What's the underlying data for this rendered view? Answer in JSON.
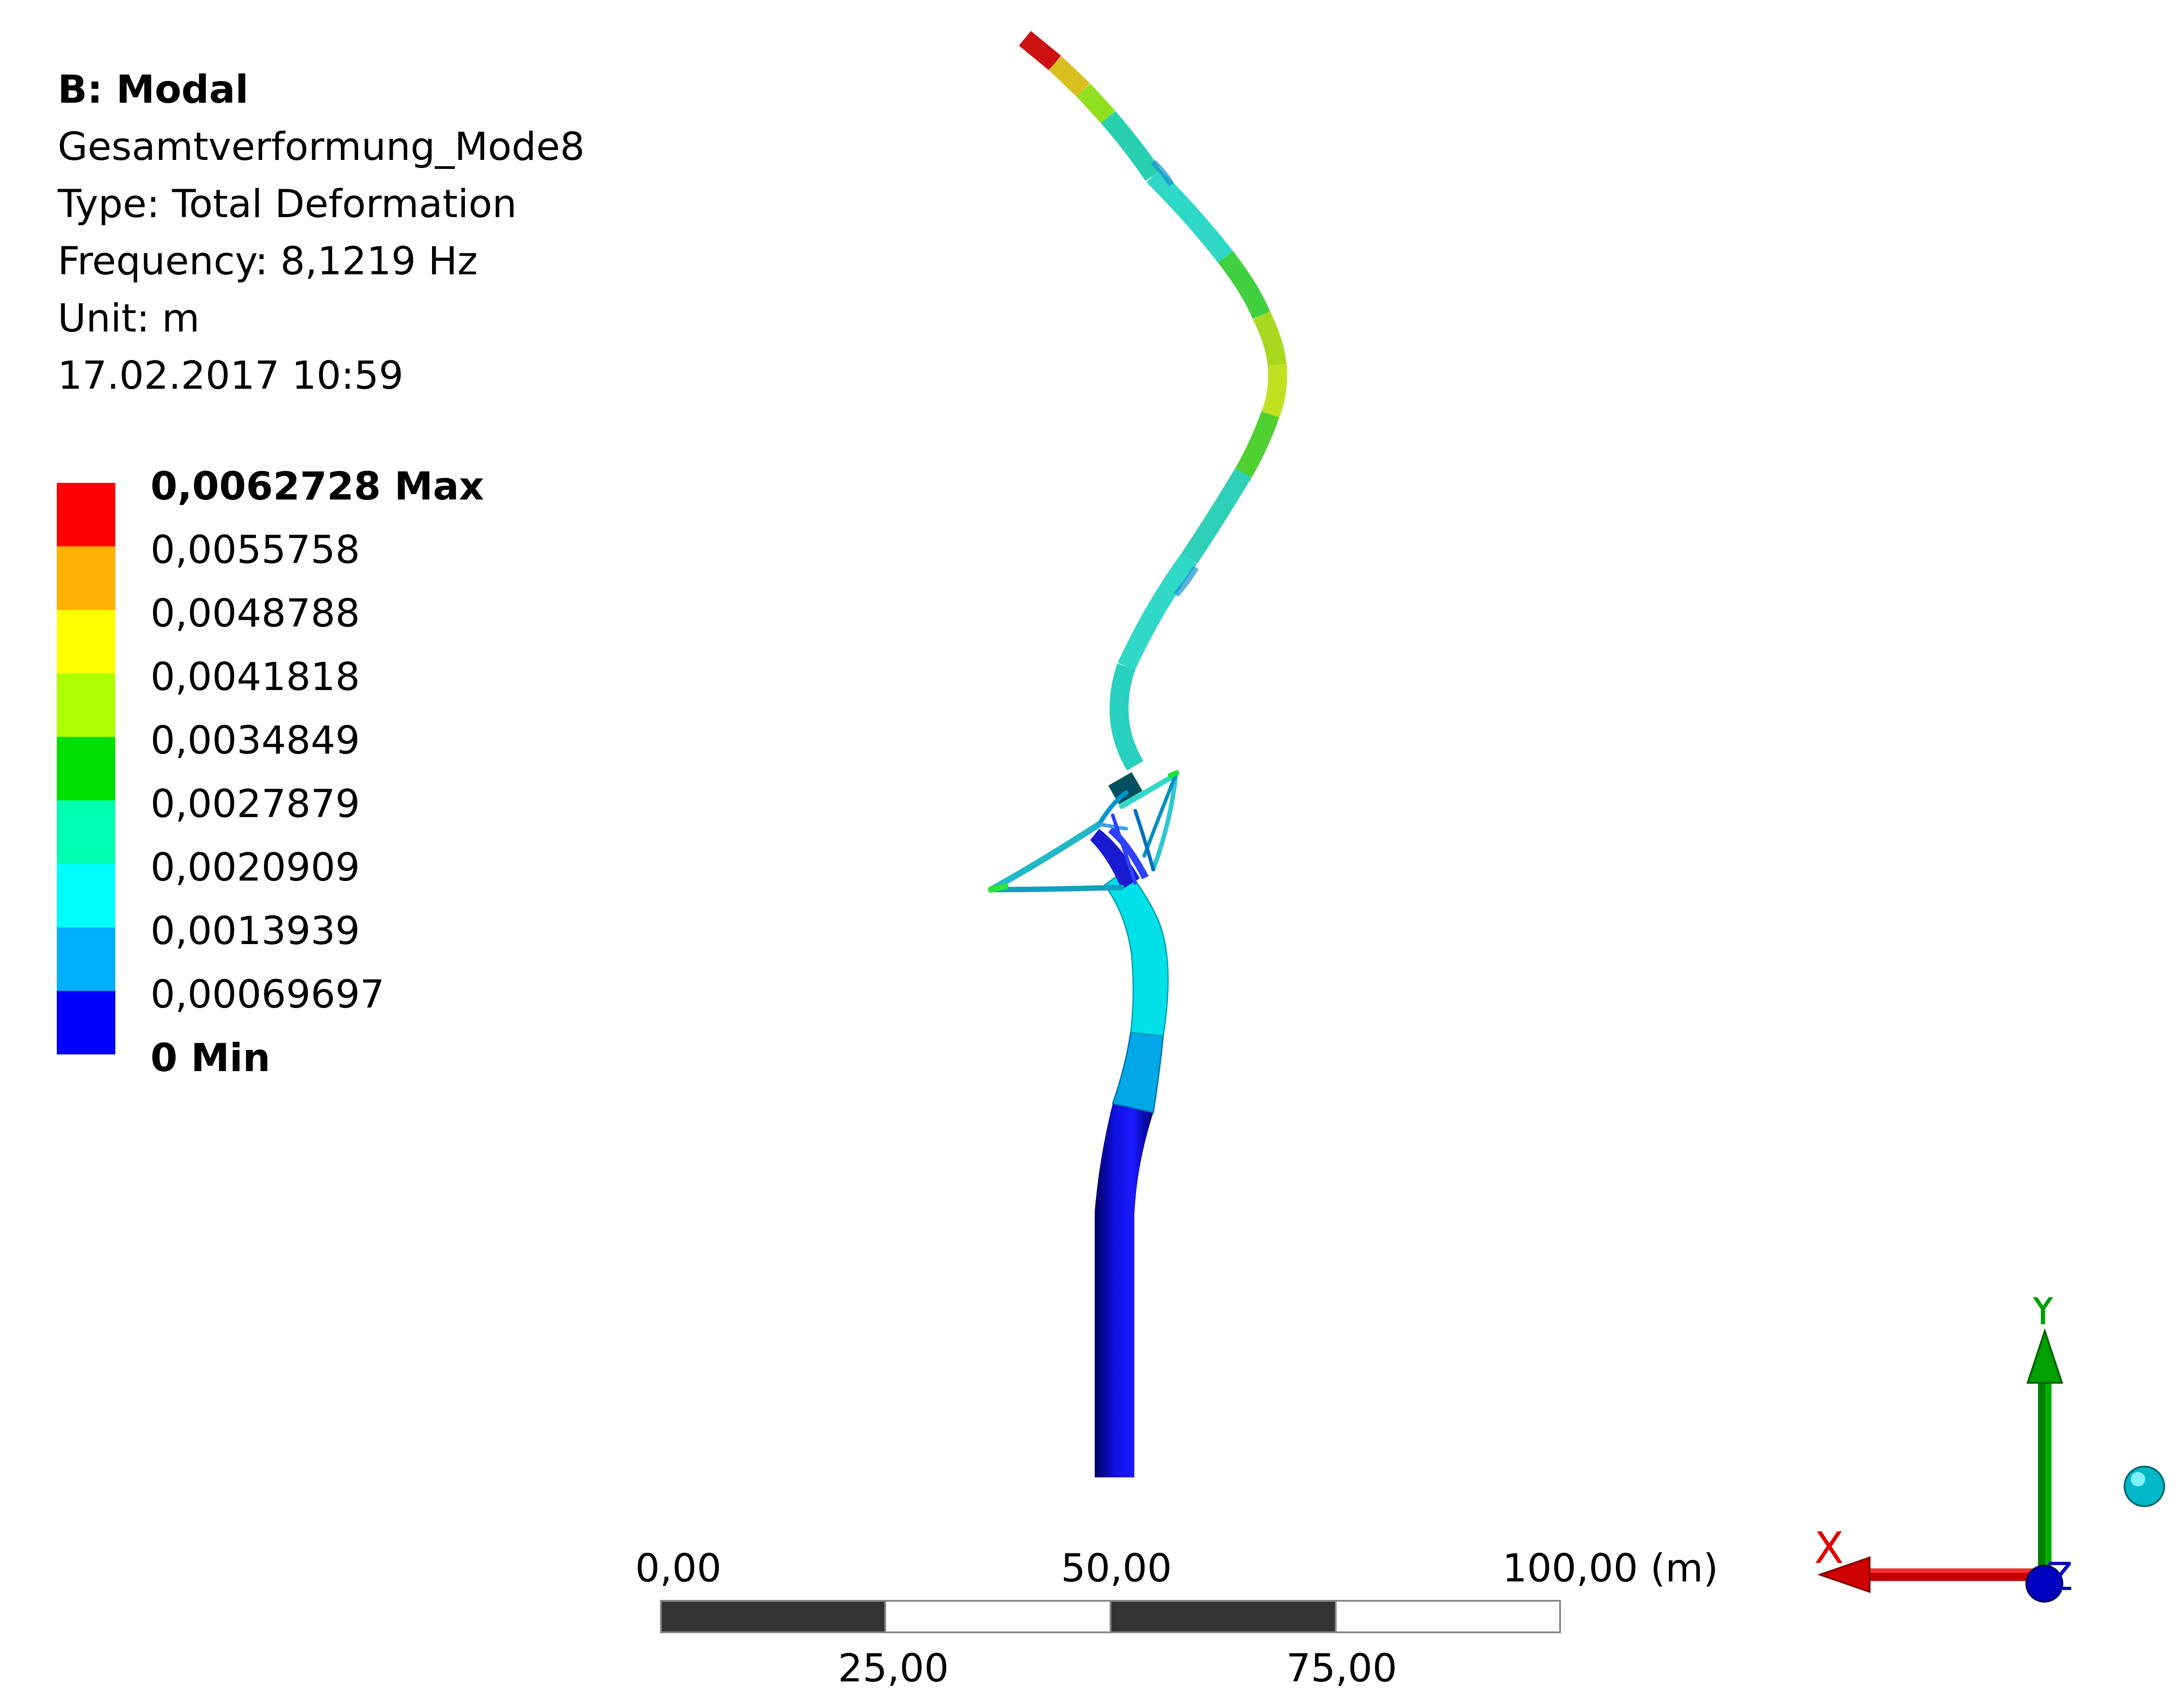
{
  "info": {
    "title": "B: Modal",
    "result_name": "Gesamtverformung_Mode8",
    "type_line": "Type: Total Deformation",
    "frequency_line": "Frequency: 8,1219 Hz",
    "unit_line": "Unit: m",
    "timestamp": "17.02.2017 10:59"
  },
  "legend": {
    "labels": [
      "0,0062728 Max",
      "0,0055758",
      "0,0048788",
      "0,0041818",
      "0,0034849",
      "0,0027879",
      "0,0020909",
      "0,0013939",
      "0,00069697",
      "0 Min"
    ],
    "colors": [
      "#ff0000",
      "#ffb000",
      "#ffff00",
      "#b0ff00",
      "#00e000",
      "#00ffb0",
      "#00ffff",
      "#00b0ff",
      "#0000ff"
    ]
  },
  "scale_bar": {
    "top_labels": [
      "0,00",
      "50,00",
      "100,00 (m)"
    ],
    "bottom_labels": [
      "25,00",
      "75,00"
    ]
  },
  "triad": {
    "x_label": "X",
    "y_label": "Y",
    "z_label": "Z",
    "x_color": "#e00000",
    "y_color": "#00a000",
    "z_color": "#0000c0"
  }
}
